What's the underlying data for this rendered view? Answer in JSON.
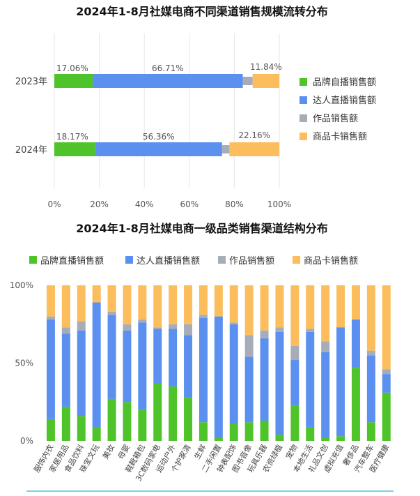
{
  "colors": {
    "green": "#4fc42a",
    "blue": "#5b8ff0",
    "gray": "#a7adb8",
    "orange": "#fcbd5c",
    "bottom_line": "#7fd0e6"
  },
  "chart_data": [
    {
      "type": "bar",
      "orientation": "horizontal",
      "stacked": true,
      "title": "2024年1-8月社媒电商不同渠道销售规模流转分布",
      "categories": [
        "2023年",
        "2024年"
      ],
      "x_ticks": [
        "0%",
        "20%",
        "40%",
        "60%",
        "80%",
        "100%"
      ],
      "xlim": [
        0,
        100
      ],
      "grid": true,
      "legend_position": "right",
      "series": [
        {
          "name": "品牌自播销售额",
          "color_key": "green",
          "values": [
            17.06,
            18.17
          ],
          "labels": [
            "17.06%",
            "18.17%"
          ]
        },
        {
          "name": "达人直播销售额",
          "color_key": "blue",
          "values": [
            66.71,
            56.36
          ],
          "labels": [
            "66.71%",
            "56.36%"
          ]
        },
        {
          "name": "作品销售额",
          "color_key": "gray",
          "values": [
            4.39,
            3.31
          ],
          "labels": [
            "",
            ""
          ]
        },
        {
          "name": "商品卡销售额",
          "color_key": "orange",
          "values": [
            11.84,
            22.16
          ],
          "labels": [
            "11.84%",
            "22.16%"
          ]
        }
      ]
    },
    {
      "type": "bar",
      "orientation": "vertical",
      "stacked": true,
      "title": "2024年1-8月社媒电商一级品类销售渠道结构分布",
      "categories": [
        "服饰内衣",
        "家居用品",
        "食品饮料",
        "珠宝文玩",
        "美妆",
        "母婴",
        "鞋靴箱包",
        "3C数码家电",
        "运动户外",
        "个护家清",
        "生鲜",
        "二手闲置",
        "钟表配饰",
        "图书音像",
        "玩具乐器",
        "农资绿植",
        "宠物",
        "本地生活",
        "礼品文创",
        "虚拟充值",
        "奢侈品",
        "汽车整车",
        "医疗健康"
      ],
      "y_ticks": [
        "0%",
        "50%",
        "100%"
      ],
      "ylim": [
        0,
        100
      ],
      "grid": false,
      "legend_position": "top",
      "series": [
        {
          "name": "品牌直播销售额",
          "color_key": "green",
          "values": [
            14,
            22,
            16,
            9,
            27,
            25,
            20,
            37,
            35,
            28,
            12,
            2,
            11,
            12,
            13,
            4,
            23,
            9,
            2,
            3,
            47,
            12,
            31
          ]
        },
        {
          "name": "达人直播销售额",
          "color_key": "blue",
          "values": [
            64,
            47,
            55,
            80,
            54,
            46,
            56,
            35,
            37,
            40,
            67,
            78,
            64,
            42,
            53,
            66,
            29,
            61,
            55,
            70,
            31,
            43,
            12
          ]
        },
        {
          "name": "作品销售额",
          "color_key": "gray",
          "values": [
            2,
            4,
            6,
            0,
            2,
            4,
            2,
            1,
            3,
            7,
            2,
            0,
            1,
            14,
            5,
            3,
            9,
            2,
            7,
            0,
            0,
            3,
            3
          ]
        },
        {
          "name": "商品卡销售额",
          "color_key": "orange",
          "values": [
            20,
            27,
            23,
            11,
            17,
            25,
            22,
            27,
            25,
            25,
            19,
            20,
            24,
            32,
            29,
            27,
            39,
            28,
            36,
            27,
            22,
            42,
            54
          ]
        }
      ]
    }
  ]
}
